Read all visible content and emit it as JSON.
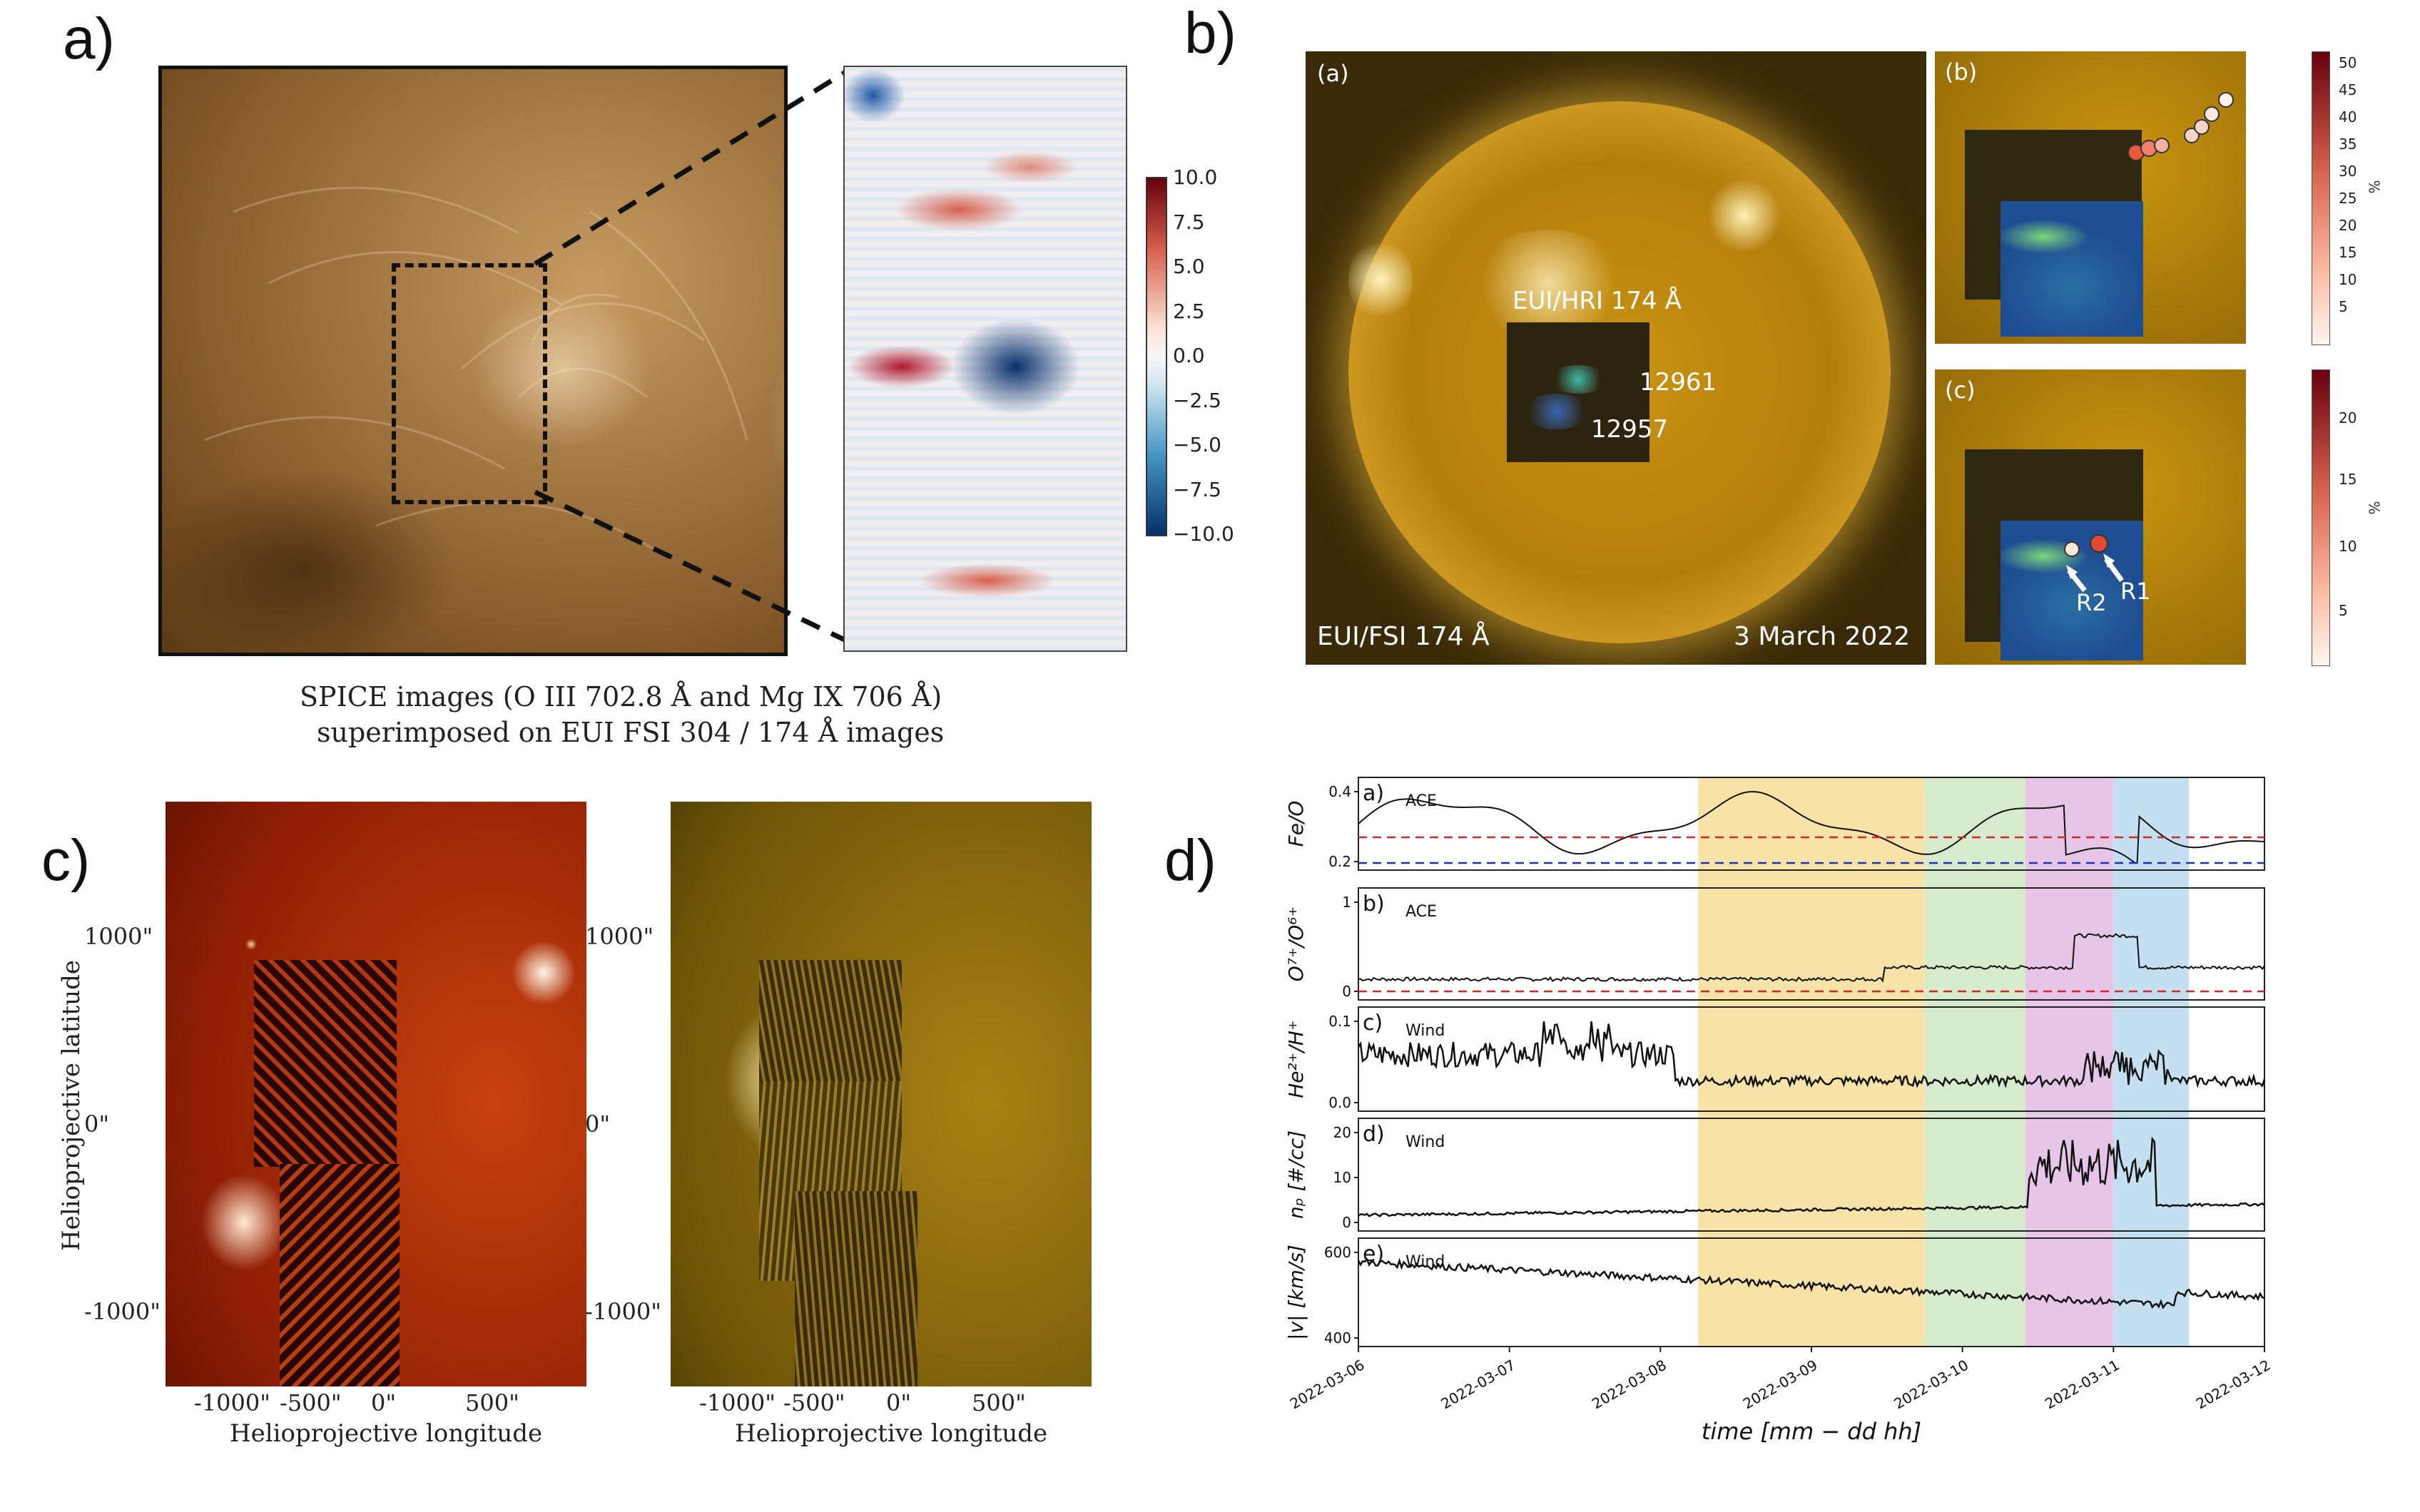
{
  "panels": {
    "a": {
      "label": "a)",
      "caption_line1": "SPICE images (O III 702.8 Å and Mg IX 706 Å)",
      "caption_line2": "superimposed on EUI FSI 304 / 174 Å images",
      "colorbar": {
        "ticks": [
          "10.0",
          "7.5",
          "5.0",
          "2.5",
          "0.0",
          "−2.5",
          "−5.0",
          "−7.5",
          "−10.0"
        ],
        "range": [
          -10,
          10
        ],
        "colors": {
          "low": "#08306b",
          "mid": "#f7f7f7",
          "high": "#67000d"
        }
      }
    },
    "b": {
      "label": "b)",
      "sub_a": "(a)",
      "sub_b": "(b)",
      "sub_c": "(c)",
      "hri_label": "EUI/HRI 174 Å",
      "ar1": "12961",
      "ar2": "12957",
      "fsi_label": "EUI/FSI 174 Å",
      "date": "3 March 2022",
      "r1": "R1",
      "r2": "R2",
      "cbar_b_ticks": [
        "50",
        "45",
        "40",
        "35",
        "30",
        "25",
        "20",
        "15",
        "10",
        "5"
      ],
      "cbar_c_ticks": [
        "20",
        "15",
        "10",
        "5"
      ],
      "cbar_unit": "%"
    },
    "c": {
      "label": "c)",
      "ylabel": "Helioprojective latitude",
      "xlabel_left": "Helioprojective longitude",
      "xlabel_right": "Helioprojective longitude",
      "yticks": [
        "1000\"",
        "0\"",
        "-1000\""
      ],
      "xticks": [
        "-1000\"",
        "-500\"",
        "0\"",
        "500\""
      ]
    },
    "d": {
      "label": "d)",
      "xlabel": "time [mm − dd hh]",
      "xticks": [
        "2022-03-06",
        "2022-03-07",
        "2022-03-08",
        "2022-03-09",
        "2022-03-10",
        "2022-03-11",
        "2022-03-12"
      ],
      "subplots": [
        {
          "tag": "a)",
          "source": "ACE",
          "ylabel": "Fe/O",
          "yticks": [
            "0.4",
            "0.2"
          ]
        },
        {
          "tag": "b)",
          "source": "ACE",
          "ylabel": "O⁷⁺/O⁶⁺",
          "yticks": [
            "1",
            "0"
          ]
        },
        {
          "tag": "c)",
          "source": "Wind",
          "ylabel": "He²⁺/H⁺",
          "yticks": [
            "0.1",
            "0.0"
          ]
        },
        {
          "tag": "d)",
          "source": "Wind",
          "ylabel": "nₚ [#/cc]",
          "yticks": [
            "20",
            "10",
            "0"
          ]
        },
        {
          "tag": "e)",
          "source": "Wind",
          "ylabel": "|v| [km/s]",
          "yticks": [
            "600",
            "400"
          ]
        }
      ],
      "bands": [
        {
          "color": "#f7e3a8",
          "from": "2022-03-08 06",
          "to": "2022-03-09 18"
        },
        {
          "color": "#d6ebcc",
          "from": "2022-03-09 18",
          "to": "2022-03-10 10"
        },
        {
          "color": "#e6c6e6",
          "from": "2022-03-10 10",
          "to": "2022-03-11 00"
        },
        {
          "color": "#c3dff0",
          "from": "2022-03-11 00",
          "to": "2022-03-11 12"
        }
      ]
    }
  }
}
